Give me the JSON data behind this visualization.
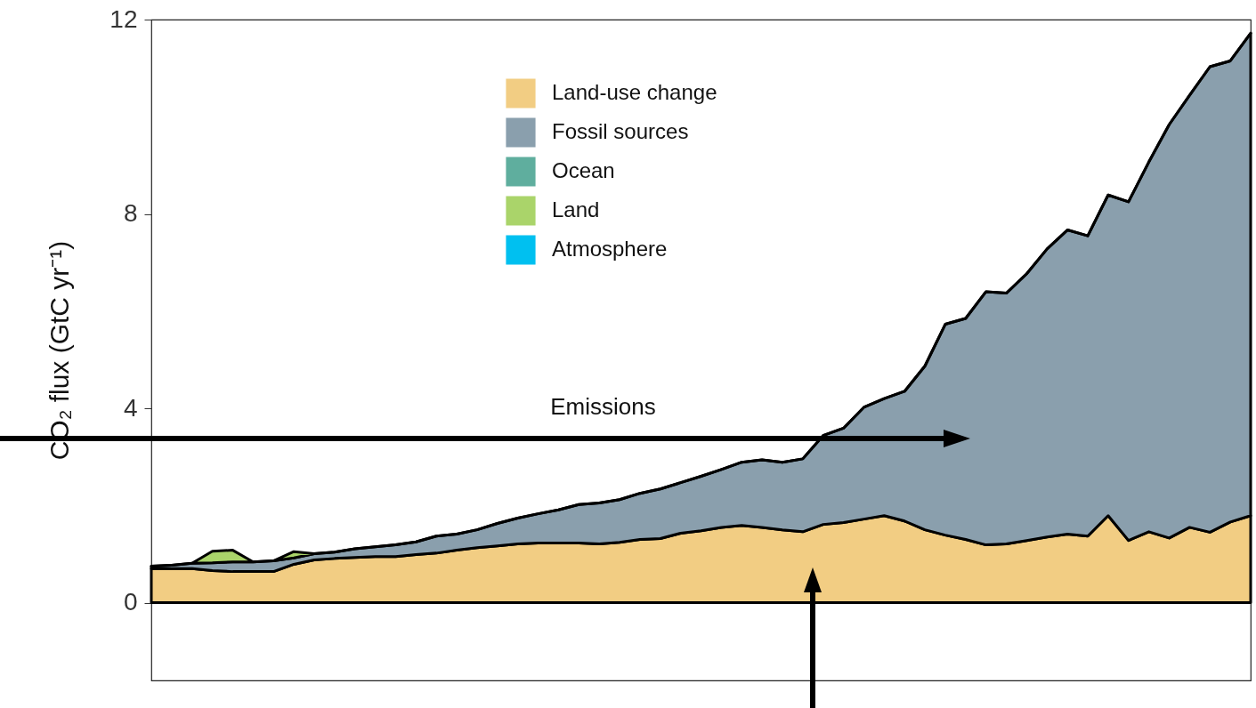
{
  "chart_data": {
    "type": "area",
    "stacked": true,
    "ylabel": "CO₂ flux (GtC yr⁻¹)",
    "annotations": [
      "Emissions"
    ],
    "categories": [
      null,
      null,
      null,
      null,
      null,
      null,
      null,
      null,
      null,
      null,
      null,
      null,
      null,
      null,
      null,
      null,
      null,
      null,
      null,
      null,
      null,
      null,
      null,
      null,
      null,
      null,
      null,
      null,
      null,
      null,
      null,
      null,
      null,
      null,
      null,
      null,
      null,
      null,
      null,
      null,
      null,
      null,
      null,
      null,
      null,
      null,
      null,
      null,
      null,
      null,
      null,
      null,
      null,
      null,
      null
    ],
    "series": [
      {
        "name": "Land-use change",
        "color": "#f2cd83",
        "values": [
          0.7,
          0.7,
          0.7,
          0.66,
          0.64,
          0.64,
          0.64,
          0.79,
          0.88,
          0.91,
          0.93,
          0.95,
          0.95,
          0.99,
          1.02,
          1.08,
          1.13,
          1.17,
          1.21,
          1.23,
          1.23,
          1.23,
          1.21,
          1.24,
          1.3,
          1.32,
          1.43,
          1.48,
          1.55,
          1.59,
          1.55,
          1.5,
          1.46,
          1.61,
          1.65,
          1.72,
          1.79,
          1.68,
          1.5,
          1.39,
          1.3,
          1.19,
          1.21,
          1.28,
          1.35,
          1.41,
          1.37,
          1.79,
          1.28,
          1.46,
          1.33,
          1.55,
          1.45,
          1.66,
          1.79
        ]
      },
      {
        "name": "Fossil sources",
        "color": "#8a9fad",
        "values": [
          0.05,
          0.07,
          0.11,
          0.16,
          0.2,
          0.2,
          0.22,
          0.13,
          0.13,
          0.13,
          0.18,
          0.2,
          0.24,
          0.26,
          0.35,
          0.33,
          0.37,
          0.46,
          0.53,
          0.6,
          0.68,
          0.79,
          0.84,
          0.88,
          0.95,
          1.02,
          1.04,
          1.12,
          1.19,
          1.3,
          1.39,
          1.39,
          1.5,
          1.83,
          1.94,
          2.3,
          2.41,
          2.67,
          3.37,
          4.34,
          4.55,
          5.21,
          5.16,
          5.49,
          5.93,
          6.26,
          6.18,
          6.6,
          6.97,
          7.61,
          8.51,
          8.89,
          9.58,
          9.49,
          9.93
        ]
      },
      {
        "name": "Ocean",
        "color": "#5fae9e",
        "values": [
          null,
          null,
          null,
          null,
          null,
          null,
          null,
          null,
          null,
          null,
          null,
          null,
          null,
          null,
          null,
          null,
          null,
          null,
          null,
          null,
          null,
          null,
          null,
          null,
          null,
          null,
          null,
          null,
          null,
          null,
          null,
          null,
          null,
          null,
          null,
          null,
          null,
          null,
          null,
          null,
          null,
          null,
          null,
          null,
          null,
          null,
          null,
          null,
          null,
          null,
          null,
          null,
          null,
          null,
          null
        ]
      },
      {
        "name": "Land",
        "color": "#aad46a",
        "values": [
          0,
          0,
          0,
          0.24,
          0.24,
          0,
          0,
          0.13,
          0,
          0,
          0,
          0,
          0,
          0,
          0,
          0,
          0,
          0,
          0,
          0,
          0,
          0,
          0,
          0,
          0,
          0,
          0,
          0,
          0,
          0,
          0,
          0,
          0,
          0,
          0,
          0,
          0,
          0,
          0,
          0,
          0,
          0,
          0,
          0,
          0,
          0,
          0,
          0,
          0,
          0,
          0,
          0,
          0,
          0,
          0
        ]
      },
      {
        "name": "Atmosphere",
        "color": "#00c0f0",
        "values": [
          null,
          null,
          null,
          null,
          null,
          null,
          null,
          null,
          null,
          null,
          null,
          null,
          null,
          null,
          null,
          null,
          null,
          null,
          null,
          null,
          null,
          null,
          null,
          null,
          null,
          null,
          null,
          null,
          null,
          null,
          null,
          null,
          null,
          null,
          null,
          null,
          null,
          null,
          null,
          null,
          null,
          null,
          null,
          null,
          null,
          null,
          null,
          null,
          null,
          null,
          null,
          null,
          null,
          null,
          null
        ]
      }
    ],
    "ylim": [
      -1.6,
      12
    ],
    "yticks": [
      0,
      4,
      8,
      12
    ],
    "legend": "top",
    "tick_labels": "y",
    "grid": false
  }
}
